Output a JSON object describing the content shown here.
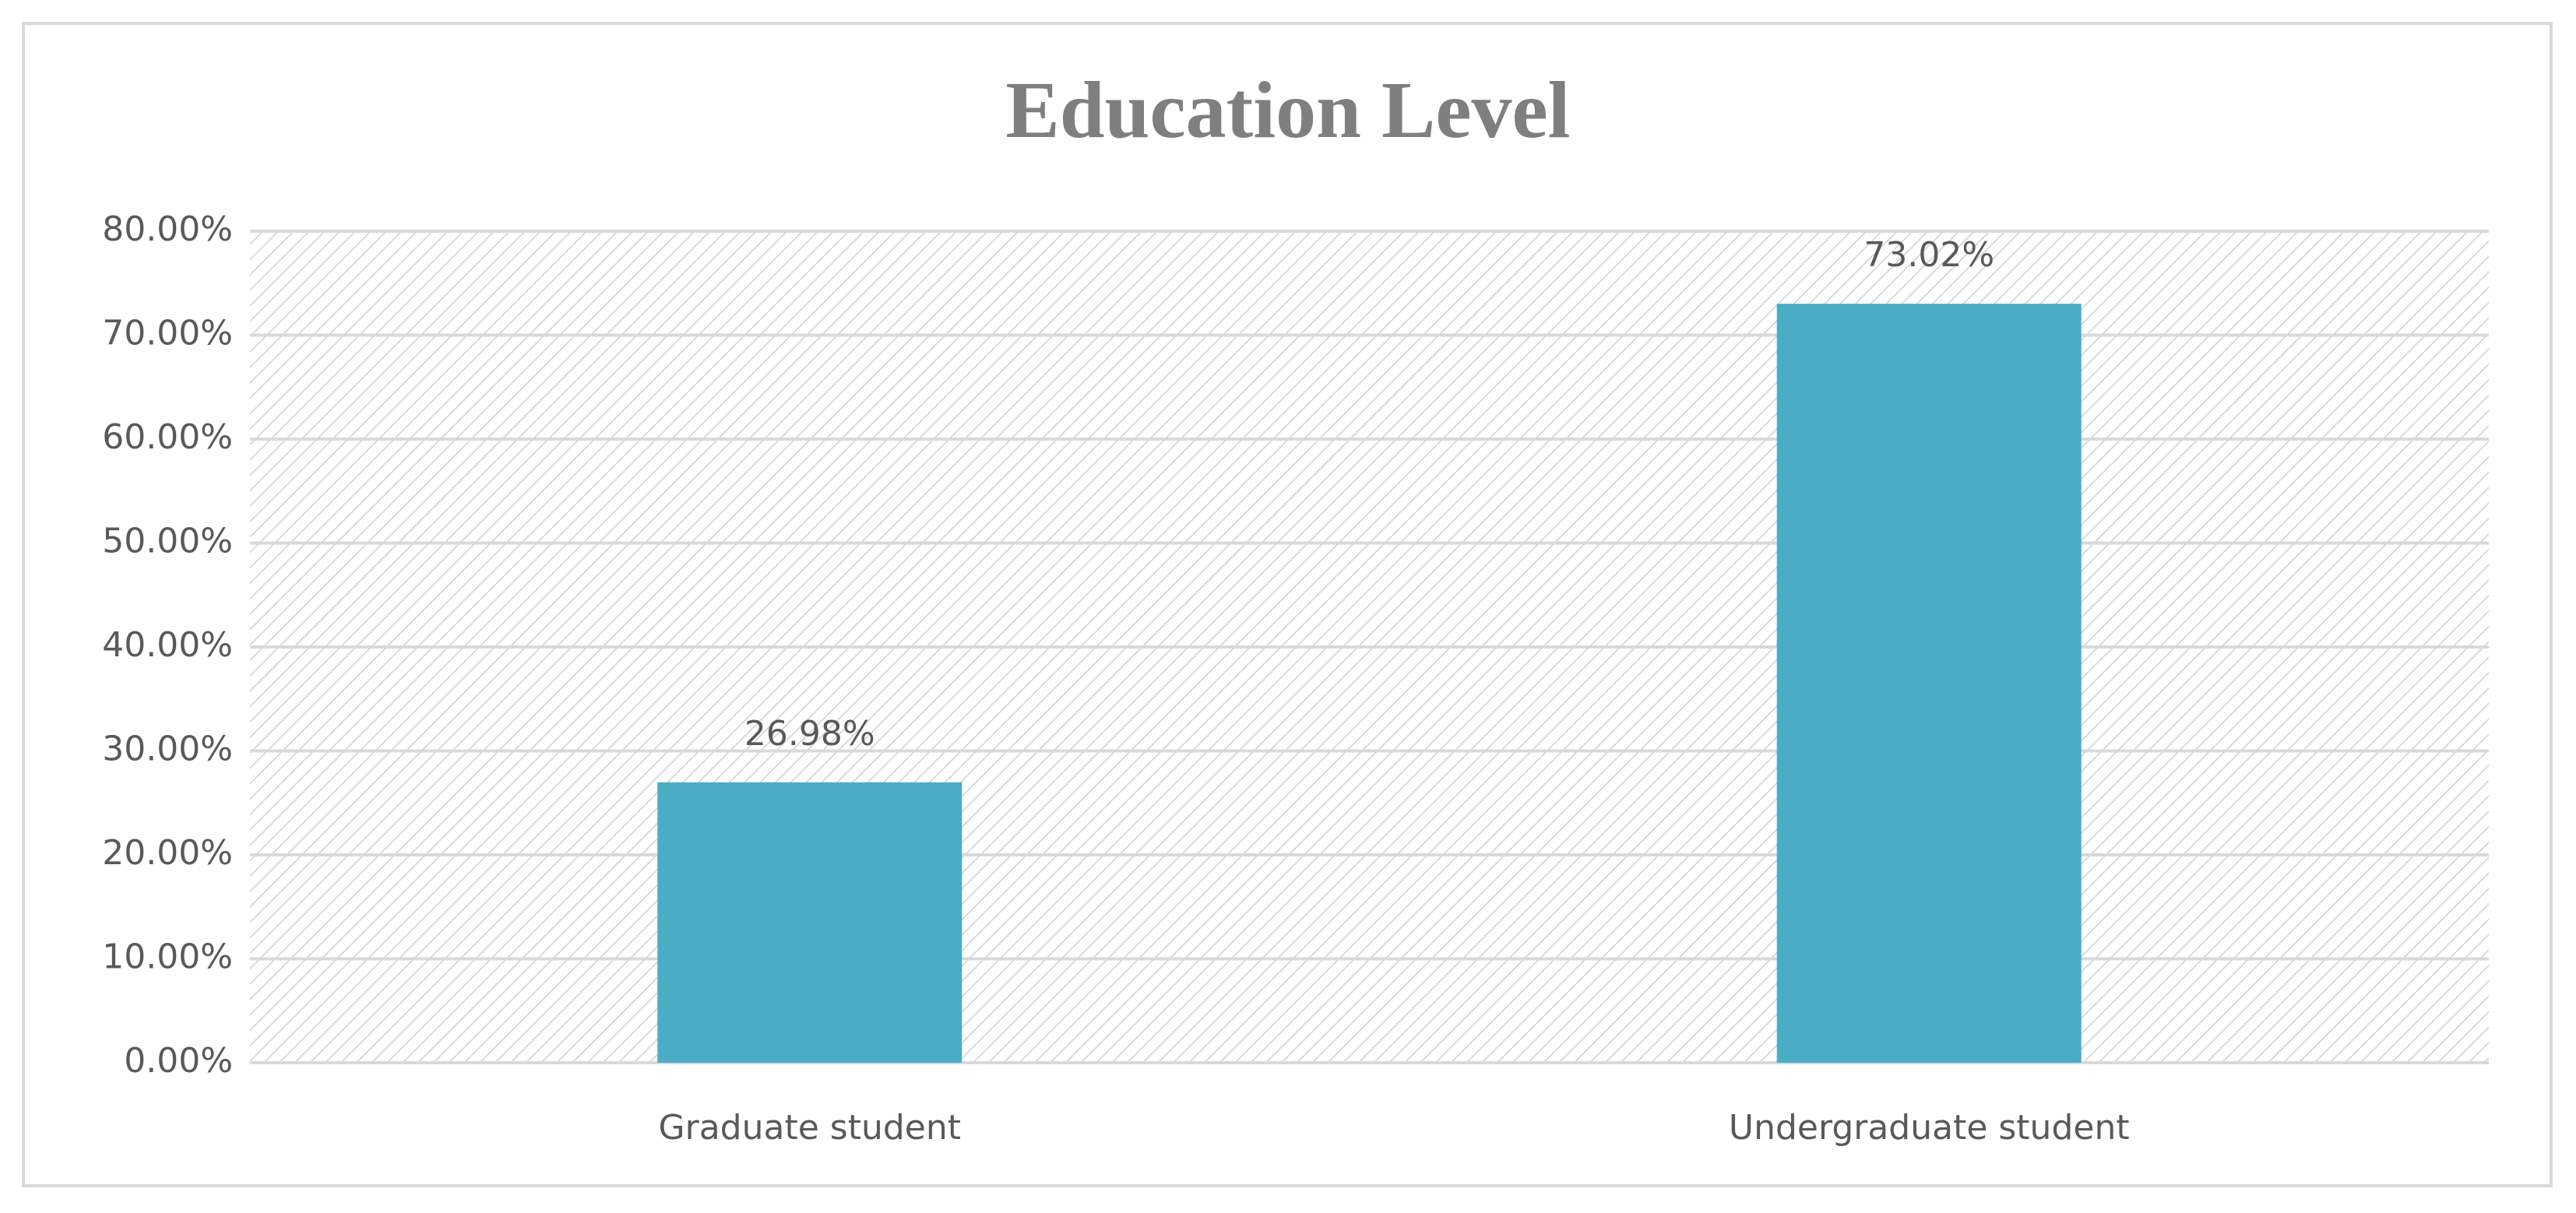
{
  "chart_data": {
    "type": "bar",
    "title": "Education Level",
    "categories": [
      "Graduate student",
      "Undergraduate student"
    ],
    "values": [
      26.98,
      73.02
    ],
    "value_labels": [
      "26.98%",
      "73.02%"
    ],
    "color": "#4bacc6",
    "ylim": [
      0,
      80
    ],
    "yticks": [
      {
        "value": 0,
        "label": "0.00%"
      },
      {
        "value": 10,
        "label": "10.00%"
      },
      {
        "value": 20,
        "label": "20.00%"
      },
      {
        "value": 30,
        "label": "30.00%"
      },
      {
        "value": 40,
        "label": "40.00%"
      },
      {
        "value": 50,
        "label": "50.00%"
      },
      {
        "value": 60,
        "label": "60.00%"
      },
      {
        "value": 70,
        "label": "70.00%"
      },
      {
        "value": 80,
        "label": "80.00%"
      }
    ],
    "grid": true
  }
}
